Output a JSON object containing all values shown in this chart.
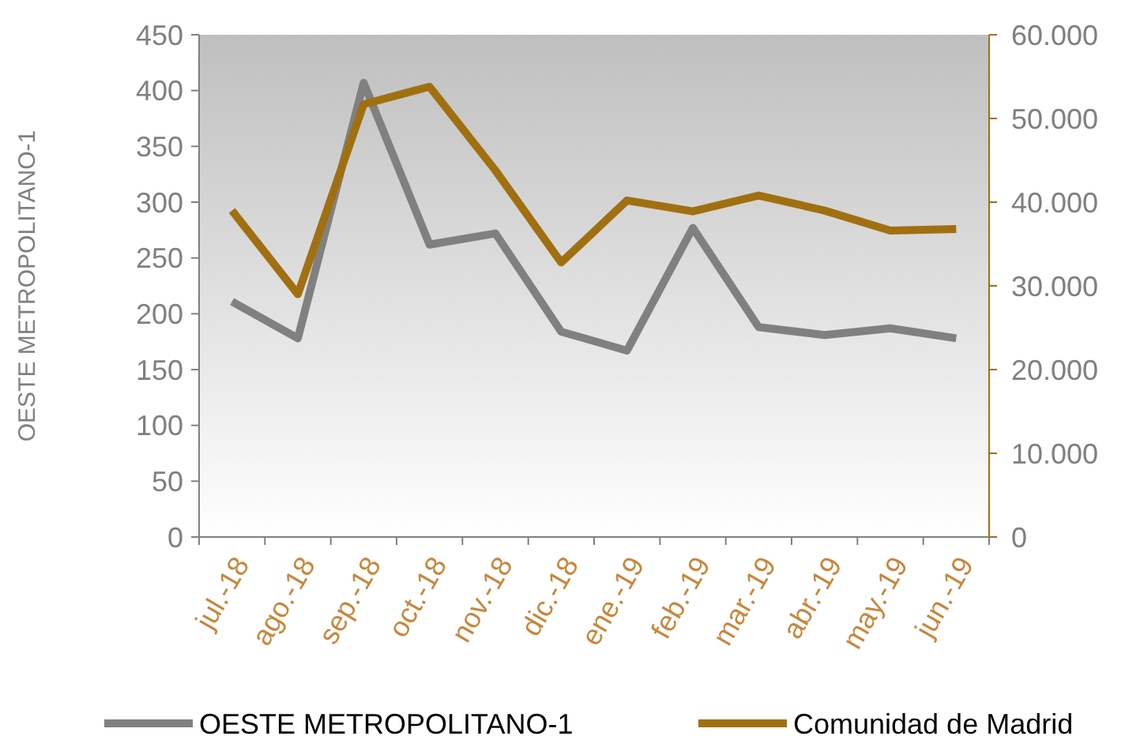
{
  "chart_data": {
    "type": "line",
    "ylabel": "OESTE METROPOLITANO-1",
    "categories": [
      "jul.-18",
      "ago.-18",
      "sep.-18",
      "oct.-18",
      "nov.-18",
      "dic.-18",
      "ene.-19",
      "feb.-19",
      "mar.-19",
      "abr.-19",
      "may.-19",
      "jun.-19"
    ],
    "series": [
      {
        "name": "OESTE METROPOLITANO-1",
        "color": "#808080",
        "values": [
          211,
          178,
          407,
          262,
          272,
          184,
          167,
          277,
          188,
          181,
          187,
          178
        ]
      },
      {
        "name": "Comunidad de Madrid",
        "color": "#a07010",
        "axis": "y2",
        "values": [
          39000,
          29000,
          51700,
          53800,
          43800,
          32800,
          40200,
          38900,
          40800,
          39000,
          36600,
          36800
        ]
      }
    ],
    "ylim": [
      0,
      450
    ],
    "yticks": [
      0,
      50,
      100,
      150,
      200,
      250,
      300,
      350,
      400,
      450
    ],
    "y2lim": [
      0,
      60000
    ],
    "y2ticks": [
      0,
      {
        "value": 10000,
        "label": "10.000"
      },
      {
        "value": 20000,
        "label": "20.000"
      },
      {
        "value": 30000,
        "label": "30.000"
      },
      {
        "value": 40000,
        "label": "40.000"
      },
      {
        "value": 50000,
        "label": "50.000"
      },
      {
        "value": 60000,
        "label": "60.000"
      }
    ],
    "legend": "bottom",
    "grid": false,
    "marker": "none",
    "line_style": "solid"
  }
}
